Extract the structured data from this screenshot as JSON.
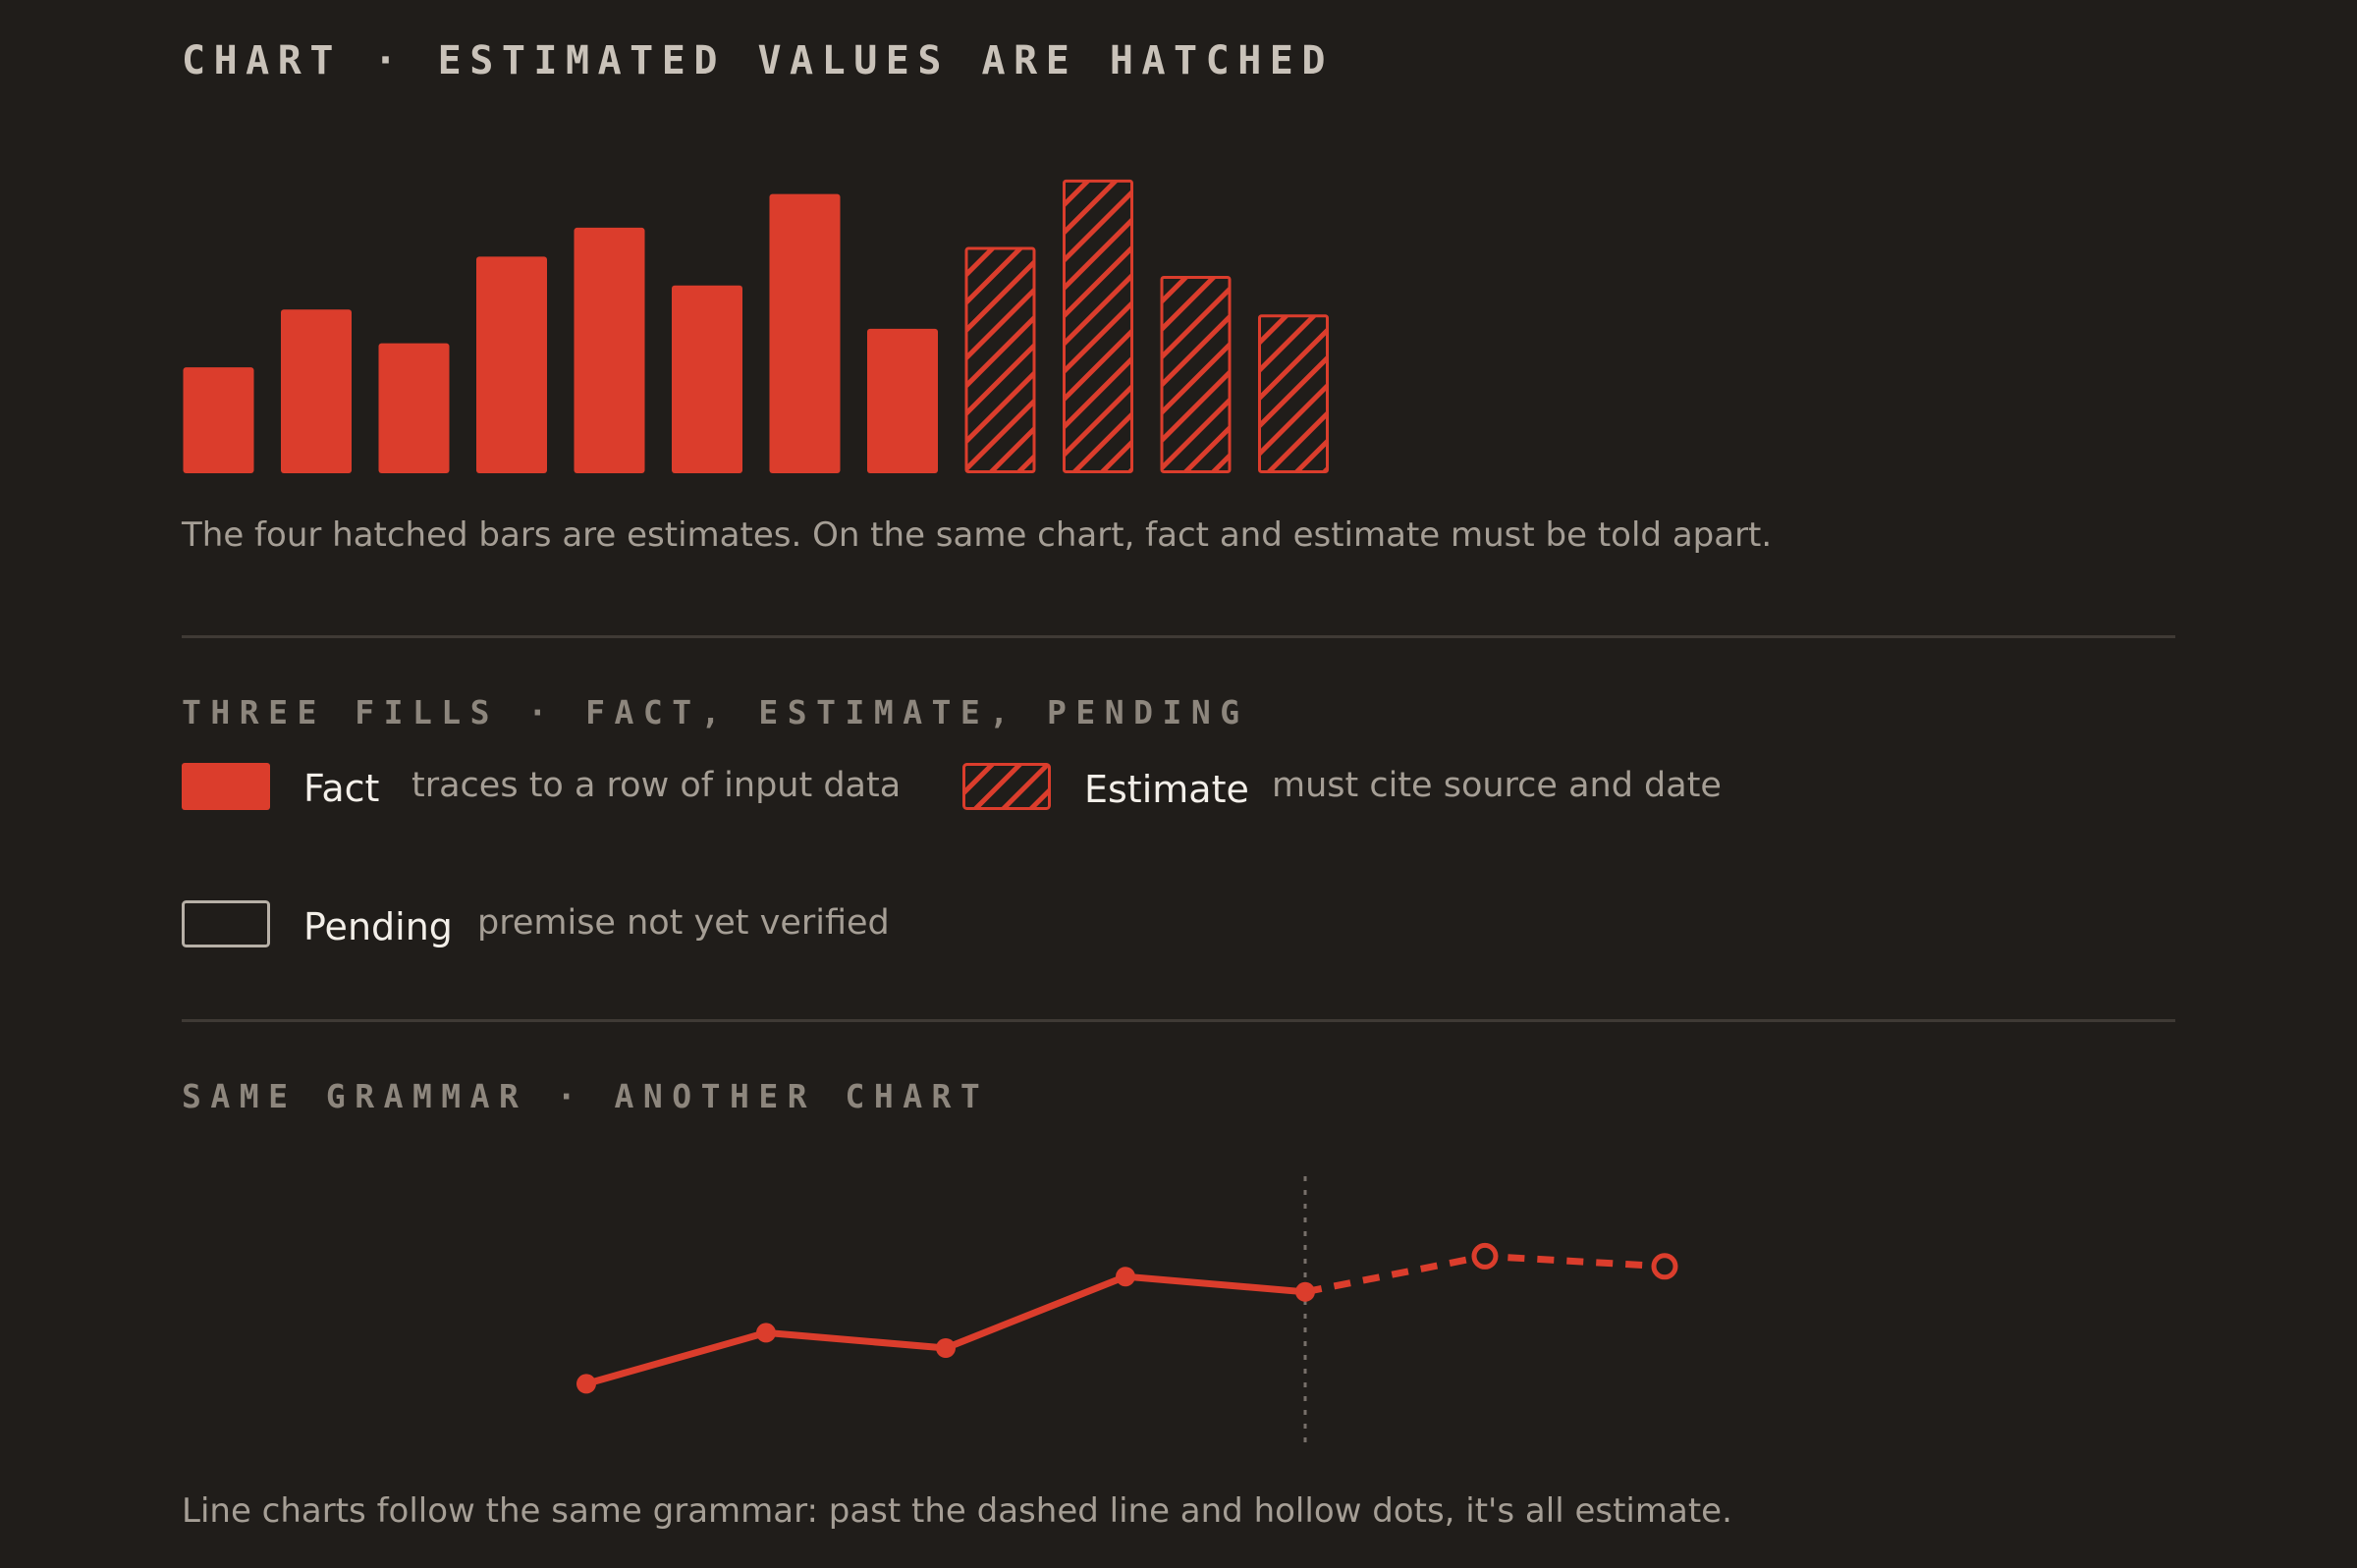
{
  "colors": {
    "background": "#201d1a",
    "accent": "#db3d2c",
    "heading": "#c9c2b9",
    "muted": "#a59e95",
    "rule": "#3f3a35"
  },
  "section1": {
    "heading": "CHART · ESTIMATED VALUES ARE HATCHED",
    "caption": "The four hatched bars are estimates. On the same chart, fact and estimate must be told apart."
  },
  "section2": {
    "heading": "THREE FILLS · FACT, ESTIMATE, PENDING",
    "legend": [
      {
        "name": "Fact",
        "description": "traces to a row of input data",
        "fill": "solid"
      },
      {
        "name": "Estimate",
        "description": "must cite source and date",
        "fill": "hatched"
      },
      {
        "name": "Pending",
        "description": "premise not yet verified",
        "fill": "outline"
      }
    ]
  },
  "section3": {
    "heading": "SAME GRAMMAR · ANOTHER CHART",
    "caption": "Line charts follow the same grammar: past the dashed line and hollow dots, it's all estimate."
  },
  "chart_data": [
    {
      "type": "bar",
      "values": [
        22,
        34,
        27,
        45,
        51,
        39,
        58,
        30,
        47,
        61,
        41,
        33
      ],
      "estimated": [
        false,
        false,
        false,
        false,
        false,
        false,
        false,
        false,
        true,
        true,
        true,
        true
      ],
      "ylim": [
        0,
        62
      ],
      "grid": false,
      "legend": "none"
    },
    {
      "type": "line",
      "x": [
        0,
        1,
        2,
        3,
        4,
        5,
        6
      ],
      "values": [
        3,
        13,
        10,
        24,
        21,
        28,
        26
      ],
      "estimated": [
        false,
        false,
        false,
        false,
        false,
        true,
        true
      ],
      "divider_after_index": 4,
      "ylim": [
        0,
        40
      ],
      "grid": false,
      "legend": "none"
    }
  ]
}
